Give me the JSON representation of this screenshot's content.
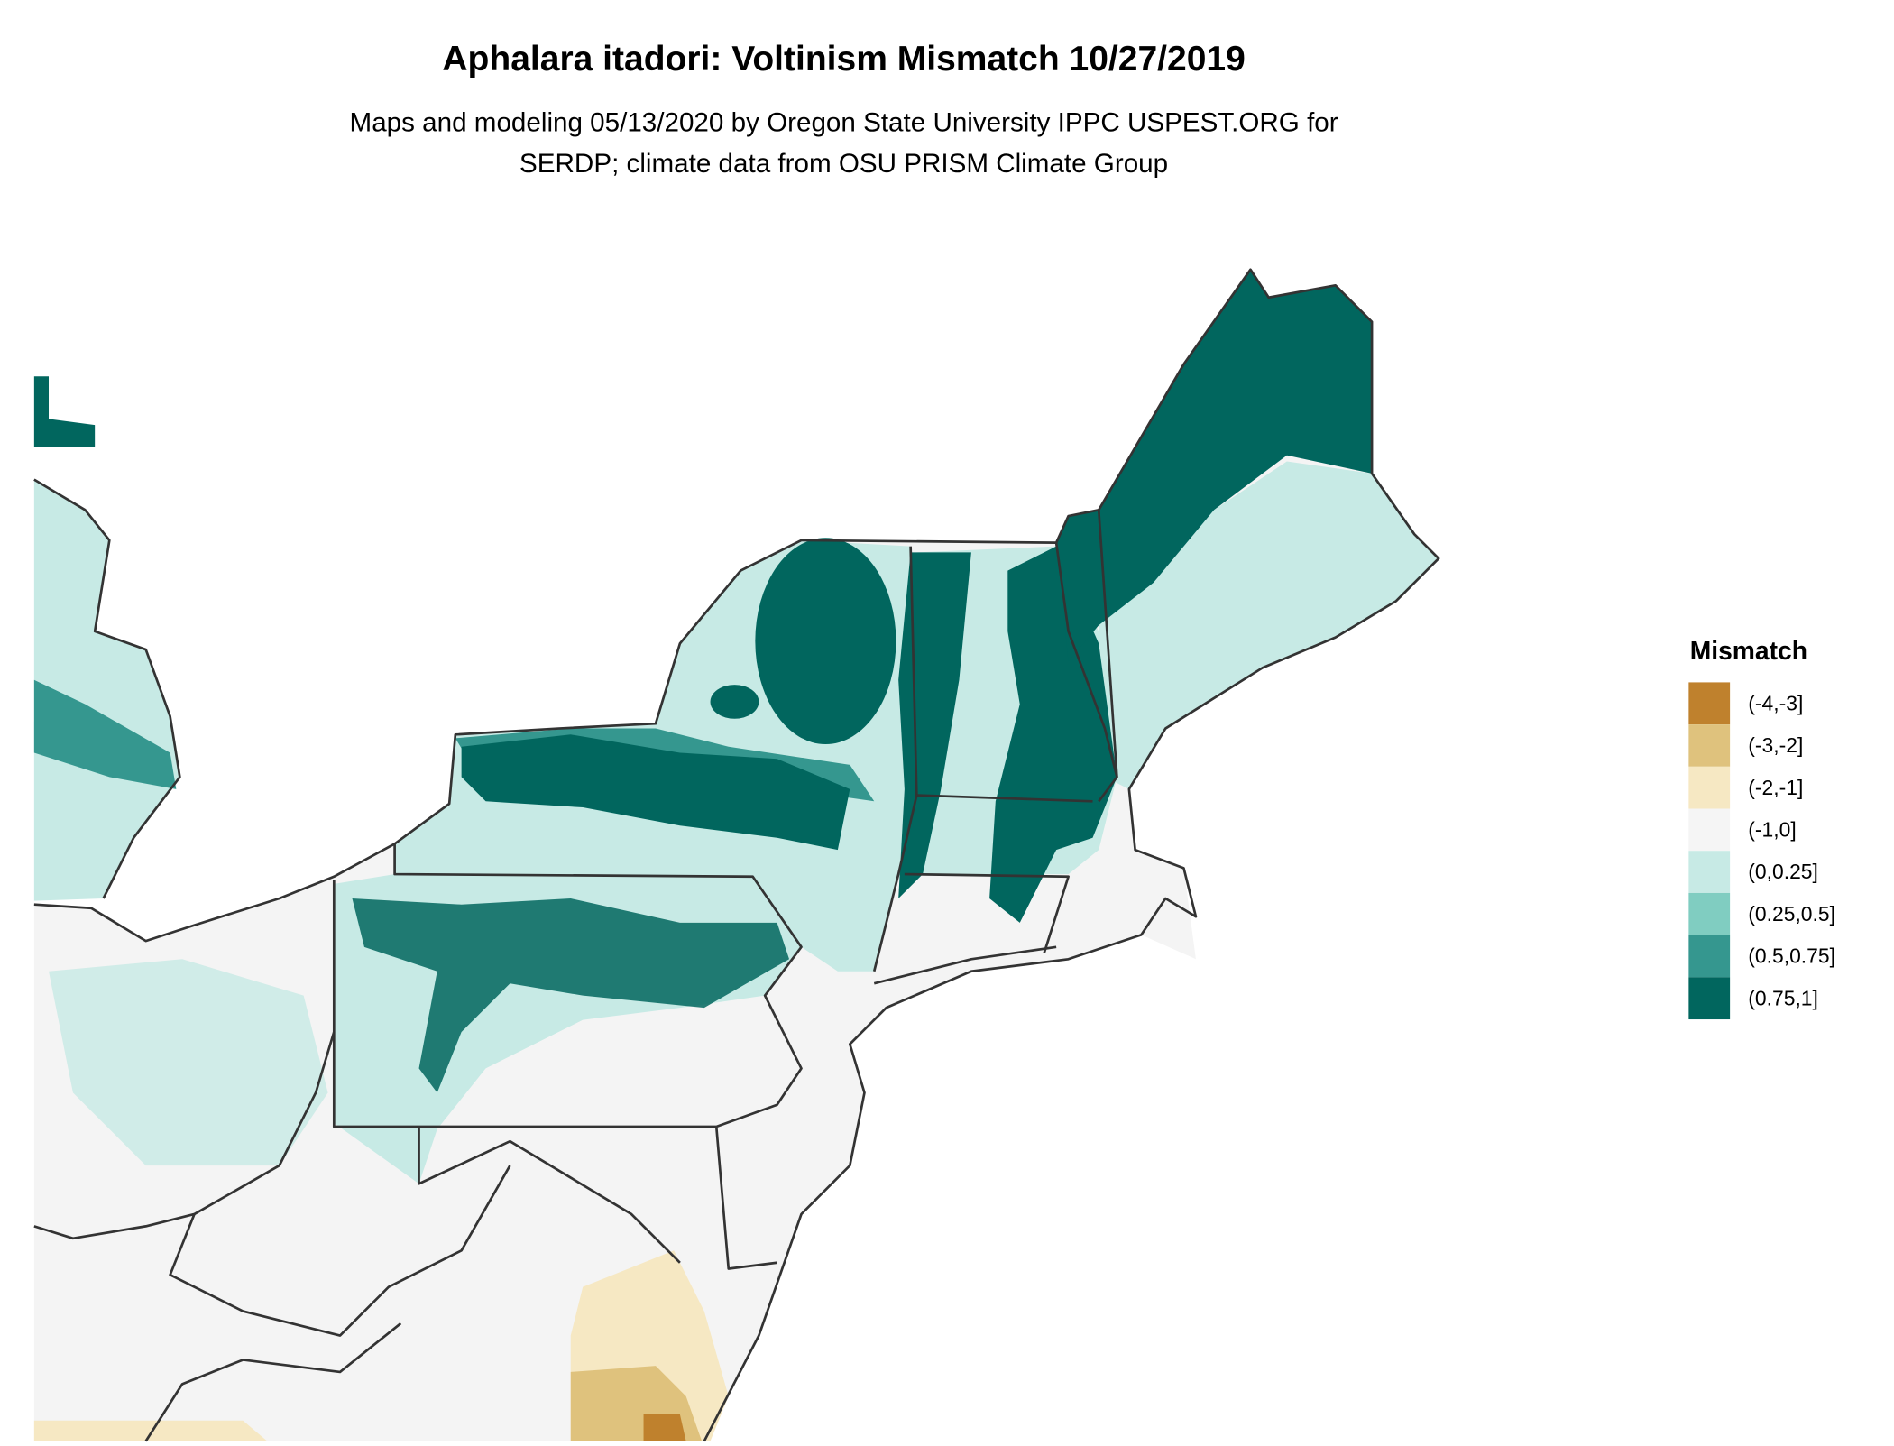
{
  "title": "Aphalara itadori: Voltinism Mismatch 10/27/2019",
  "subtitle_line1": "Maps and modeling 05/13/2020 by Oregon State University IPPC USPEST.ORG for",
  "subtitle_line2": "SERDP; climate data from OSU PRISM Climate Group",
  "legend": {
    "title": "Mismatch",
    "items": [
      {
        "label": "(-4,-3]",
        "color": "#bf812d"
      },
      {
        "label": "(-3,-2]",
        "color": "#dfc27d"
      },
      {
        "label": "(-2,-1]",
        "color": "#f6e8c3"
      },
      {
        "label": "(-1,0]",
        "color": "#f5f5f5"
      },
      {
        "label": "(0,0.25]",
        "color": "#c7eae5"
      },
      {
        "label": "(0.25,0.5]",
        "color": "#80cdc1"
      },
      {
        "label": "(0.5,0.75]",
        "color": "#35978f"
      },
      {
        "label": "(0.75,1]",
        "color": "#01665e"
      }
    ]
  }
}
